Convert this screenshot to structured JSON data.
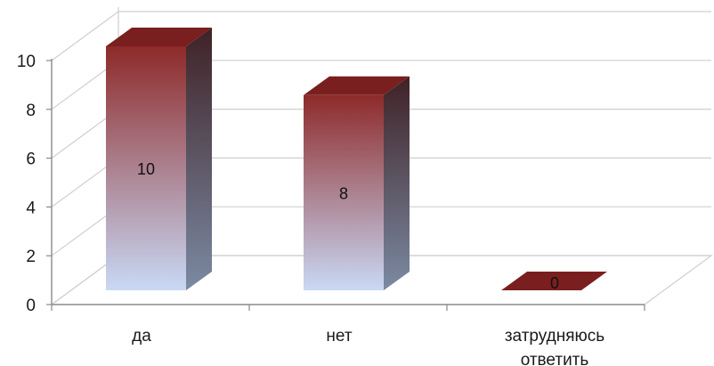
{
  "chart_data": {
    "type": "bar",
    "style": "3d-column",
    "categories": [
      "да",
      "нет",
      "затрудняюсь ответить"
    ],
    "category_lines": [
      [
        "да"
      ],
      [
        "нет"
      ],
      [
        "затрудняюсь",
        "ответить"
      ]
    ],
    "values": [
      10,
      8,
      0
    ],
    "data_labels": [
      "10",
      "8",
      "0"
    ],
    "ylim": [
      0,
      10
    ],
    "y_ticks": [
      "0",
      "2",
      "4",
      "6",
      "8",
      "10"
    ],
    "title": "",
    "xlabel": "",
    "ylabel": "",
    "grid": true,
    "legend": "none",
    "colors": {
      "bar_top": "#8e2a2a",
      "bar_bottom": "#c9d9f5",
      "side_dark": "#3f2226",
      "side_light": "#7b8aa3",
      "cap": "#7a1f1f",
      "grid": "#cfcfcf",
      "axis": "#8a8a8a"
    }
  }
}
